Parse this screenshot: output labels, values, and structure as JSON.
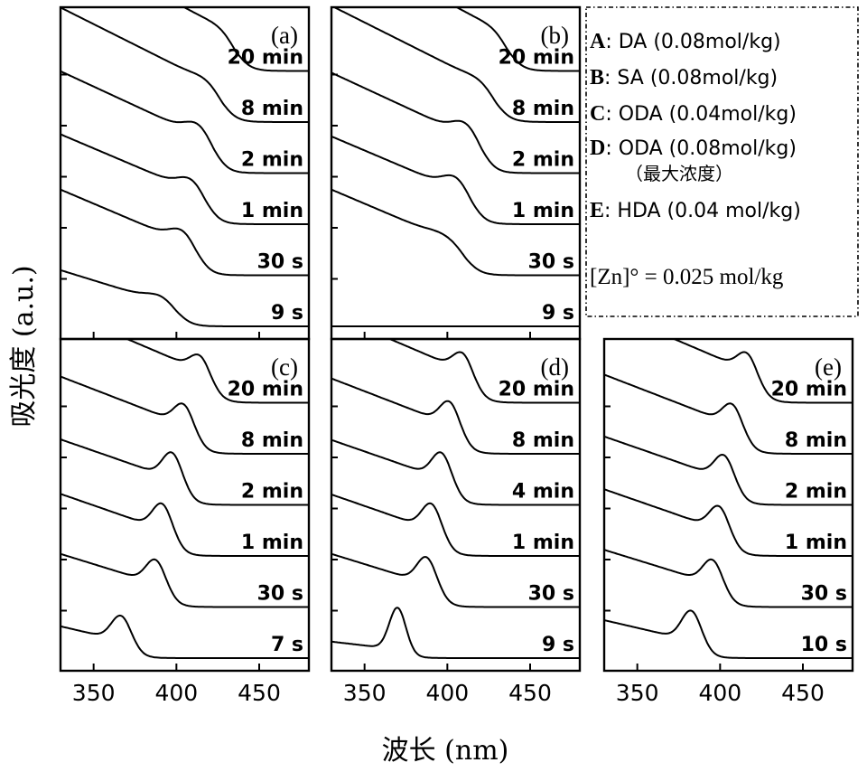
{
  "figure": {
    "y_axis_title": "吸光度 (a.u.)",
    "x_axis_title": "波长 (nm)"
  },
  "legend": {
    "entries": [
      {
        "key": "A",
        "text": ": DA (0.08mol/kg)"
      },
      {
        "key": "B",
        "text": ": SA (0.08mol/kg)"
      },
      {
        "key": "C",
        "text": ": ODA (0.04mol/kg)"
      },
      {
        "key": "D",
        "text": ": ODA (0.08mol/kg)"
      },
      {
        "key": "E",
        "text": ": HDA (0.04 mol/kg)"
      }
    ],
    "d_subnote": "（最大浓度）",
    "zn_note": "[Zn]° = 0.025 mol/kg"
  },
  "chart_data": [
    {
      "type": "line",
      "panel": "(a)",
      "xlim": [
        330,
        480
      ],
      "x_ticks": [
        350,
        400,
        450
      ],
      "xlabel": "",
      "ylabel": "",
      "traces": [
        {
          "label": "9 s",
          "peak": 392,
          "peak_height": 0.15,
          "peak_width": 9,
          "edge": 400,
          "background": 0.4
        },
        {
          "label": "30 s",
          "peak": 405,
          "peak_height": 0.3,
          "peak_width": 8,
          "edge": 412,
          "background": 0.55
        },
        {
          "label": "1 min",
          "peak": 410,
          "peak_height": 0.28,
          "peak_width": 8,
          "edge": 418,
          "background": 0.55
        },
        {
          "label": "2 min",
          "peak": 414,
          "peak_height": 0.28,
          "peak_width": 8,
          "edge": 423,
          "background": 0.6
        },
        {
          "label": "8 min",
          "peak": 419,
          "peak_height": 0.08,
          "peak_width": 8,
          "edge": 428,
          "background": 0.65
        },
        {
          "label": "20 min",
          "peak": 428,
          "peak_height": 0.05,
          "peak_width": 8,
          "edge": 436,
          "background": 0.7
        }
      ]
    },
    {
      "type": "line",
      "panel": "(b)",
      "xlim": [
        330,
        480
      ],
      "x_ticks": [
        350,
        400,
        450
      ],
      "xlabel": "",
      "ylabel": "",
      "traces": [
        {
          "label": "9 s",
          "peak": 0,
          "peak_height": 0,
          "peak_width": 8,
          "edge": 0,
          "background": 0.05
        },
        {
          "label": "30 s",
          "peak": 398,
          "peak_height": 0.08,
          "peak_width": 9,
          "edge": 412,
          "background": 0.55
        },
        {
          "label": "1 min",
          "peak": 406,
          "peak_height": 0.3,
          "peak_width": 8,
          "edge": 415,
          "background": 0.55
        },
        {
          "label": "2 min",
          "peak": 412,
          "peak_height": 0.3,
          "peak_width": 8,
          "edge": 421,
          "background": 0.6
        },
        {
          "label": "8 min",
          "peak": 420,
          "peak_height": 0.06,
          "peak_width": 8,
          "edge": 430,
          "background": 0.65
        },
        {
          "label": "20 min",
          "peak": 430,
          "peak_height": 0.05,
          "peak_width": 8,
          "edge": 437,
          "background": 0.7
        }
      ]
    },
    {
      "type": "line",
      "panel": "(c)",
      "xlim": [
        330,
        480
      ],
      "x_ticks": [
        350,
        400,
        450
      ],
      "xlabel": "",
      "ylabel": "",
      "traces": [
        {
          "label": "7 s",
          "peak": 367,
          "peak_height": 0.55,
          "peak_width": 6,
          "edge": 373,
          "background": 0.3
        },
        {
          "label": "30 s",
          "peak": 388,
          "peak_height": 0.55,
          "peak_width": 6,
          "edge": 394,
          "background": 0.4
        },
        {
          "label": "1 min",
          "peak": 392,
          "peak_height": 0.6,
          "peak_width": 6,
          "edge": 398,
          "background": 0.45
        },
        {
          "label": "2 min",
          "peak": 398,
          "peak_height": 0.6,
          "peak_width": 6,
          "edge": 404,
          "background": 0.45
        },
        {
          "label": "8 min",
          "peak": 405,
          "peak_height": 0.5,
          "peak_width": 6,
          "edge": 411,
          "background": 0.5
        },
        {
          "label": "20 min",
          "peak": 415,
          "peak_height": 0.4,
          "peak_width": 6,
          "edge": 421,
          "background": 0.55
        }
      ]
    },
    {
      "type": "line",
      "panel": "(d)",
      "xlim": [
        330,
        480
      ],
      "x_ticks": [
        350,
        400,
        450
      ],
      "xlabel": "",
      "ylabel": "",
      "traces": [
        {
          "label": "9 s",
          "peak": 370,
          "peak_height": 0.85,
          "peak_width": 5,
          "edge": 376,
          "background": 0.15
        },
        {
          "label": "30 s",
          "peak": 388,
          "peak_height": 0.6,
          "peak_width": 6,
          "edge": 394,
          "background": 0.4
        },
        {
          "label": "1 min",
          "peak": 391,
          "peak_height": 0.6,
          "peak_width": 6,
          "edge": 397,
          "background": 0.45
        },
        {
          "label": "4 min",
          "peak": 397,
          "peak_height": 0.6,
          "peak_width": 6,
          "edge": 403,
          "background": 0.45
        },
        {
          "label": "8 min",
          "peak": 402,
          "peak_height": 0.55,
          "peak_width": 6,
          "edge": 408,
          "background": 0.5
        },
        {
          "label": "20 min",
          "peak": 410,
          "peak_height": 0.45,
          "peak_width": 6,
          "edge": 416,
          "background": 0.55
        }
      ]
    },
    {
      "type": "line",
      "panel": "(e)",
      "xlim": [
        330,
        480
      ],
      "x_ticks": [
        350,
        400,
        450
      ],
      "xlabel": "",
      "ylabel": "",
      "traces": [
        {
          "label": "10 s",
          "peak": 383,
          "peak_height": 0.65,
          "peak_width": 6,
          "edge": 389,
          "background": 0.3
        },
        {
          "label": "30 s",
          "peak": 396,
          "peak_height": 0.55,
          "peak_width": 6,
          "edge": 402,
          "background": 0.4
        },
        {
          "label": "1 min",
          "peak": 400,
          "peak_height": 0.55,
          "peak_width": 6,
          "edge": 406,
          "background": 0.45
        },
        {
          "label": "2 min",
          "peak": 403,
          "peak_height": 0.55,
          "peak_width": 6,
          "edge": 409,
          "background": 0.45
        },
        {
          "label": "8 min",
          "peak": 408,
          "peak_height": 0.5,
          "peak_width": 6,
          "edge": 414,
          "background": 0.5
        },
        {
          "label": "20 min",
          "peak": 417,
          "peak_height": 0.45,
          "peak_width": 6,
          "edge": 423,
          "background": 0.55
        }
      ]
    }
  ]
}
